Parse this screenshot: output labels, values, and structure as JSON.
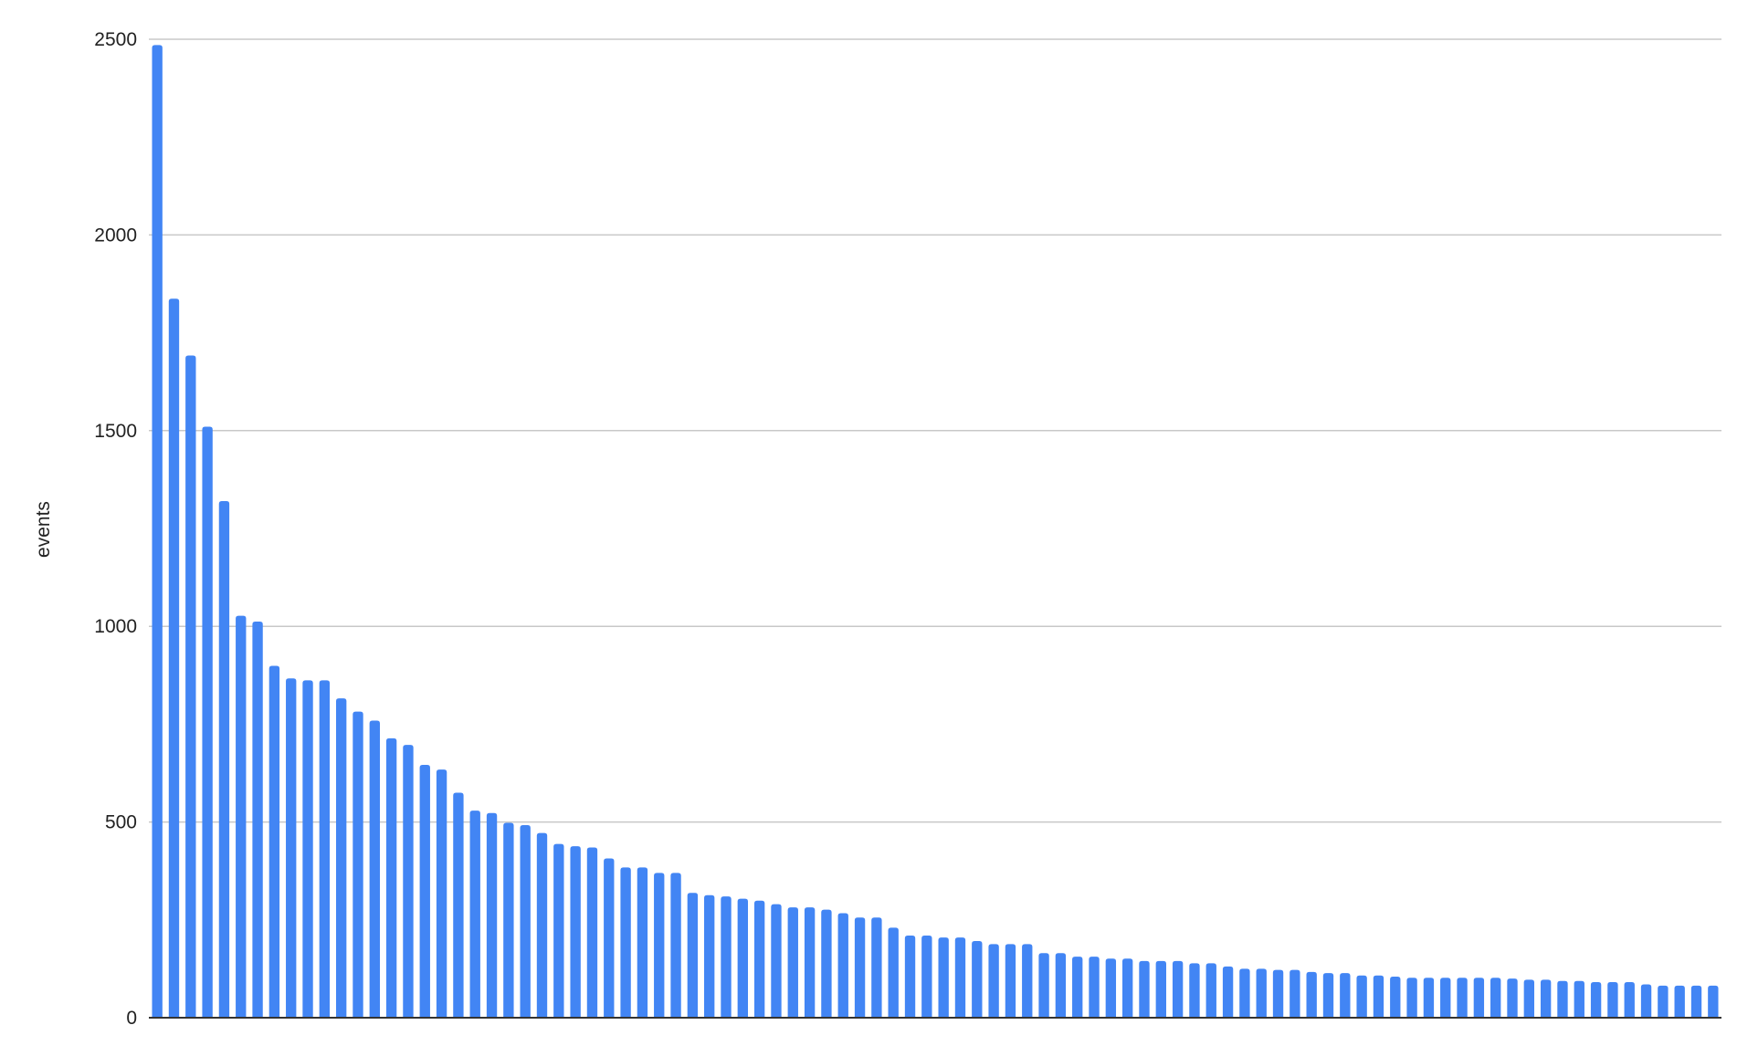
{
  "chart_data": {
    "type": "bar",
    "title": "",
    "xlabel": "",
    "ylabel": "events",
    "ylim": [
      0,
      2500
    ],
    "yticks": [
      "0",
      "500",
      "1000",
      "1500",
      "2000",
      "2500"
    ],
    "grid": true,
    "legend": "none",
    "bar_color": "#4285f4",
    "values": [
      2485,
      1837,
      1692,
      1510,
      1320,
      1027,
      1012,
      899,
      867,
      862,
      862,
      816,
      782,
      759,
      714,
      697,
      646,
      634,
      575,
      529,
      523,
      498,
      492,
      472,
      444,
      438,
      435,
      407,
      384,
      384,
      370,
      370,
      319,
      313,
      310,
      304,
      299,
      290,
      282,
      282,
      276,
      267,
      256,
      256,
      230,
      210,
      210,
      205,
      205,
      196,
      188,
      188,
      188,
      165,
      165,
      156,
      156,
      151,
      151,
      145,
      145,
      145,
      139,
      139,
      131,
      125,
      125,
      122,
      122,
      117,
      114,
      114,
      108,
      108,
      105,
      102,
      102,
      102,
      102,
      102,
      102,
      100,
      97,
      97,
      94,
      94,
      91,
      91,
      91,
      85,
      82,
      82,
      82,
      82
    ]
  }
}
